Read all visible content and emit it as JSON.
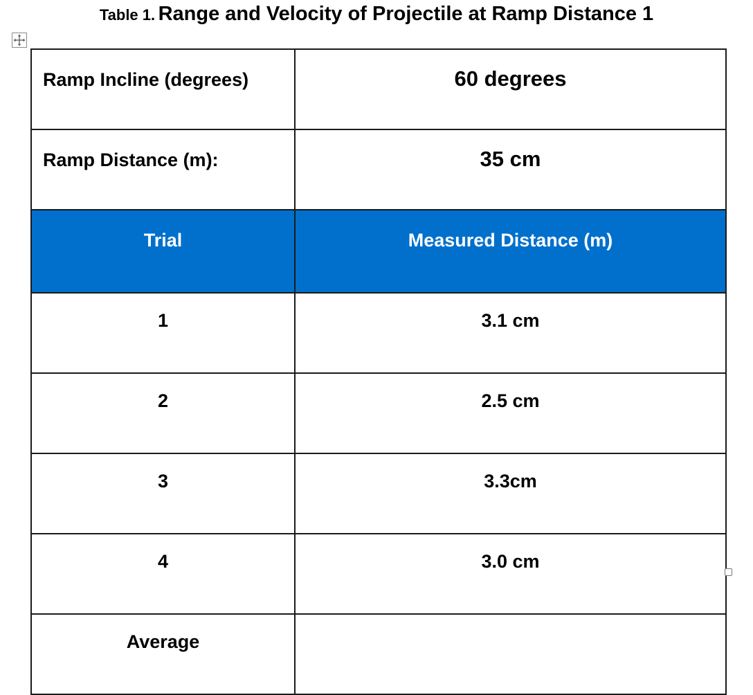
{
  "caption": {
    "label": "Table 1.",
    "title": "Range and Velocity of Projectile at Ramp Distance 1"
  },
  "icons": {
    "move_handle": "move-arrows-icon",
    "resize_handle": "resize-handle-icon"
  },
  "settings": [
    {
      "label": "Ramp Incline (degrees)",
      "value": "60 degrees"
    },
    {
      "label": "Ramp Distance (m):",
      "value": "35 cm"
    }
  ],
  "header": {
    "trial": "Trial",
    "measured": "Measured Distance (m)"
  },
  "trials": [
    {
      "trial": "1",
      "distance": "3.1 cm"
    },
    {
      "trial": "2",
      "distance": "2.5 cm"
    },
    {
      "trial": "3",
      "distance": "3.3cm"
    },
    {
      "trial": "4",
      "distance": "3.0 cm"
    }
  ],
  "average": {
    "label": "Average",
    "value": ""
  },
  "colors": {
    "header_background": "#0070cc",
    "header_text": "#ffffff",
    "border": "#1a1a1a"
  }
}
